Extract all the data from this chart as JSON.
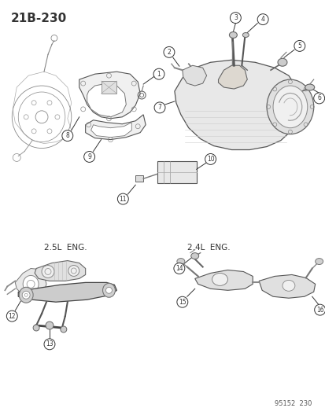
{
  "title": "21B-230",
  "footer": "95152  230",
  "bg": "#ffffff",
  "lc": "#333333",
  "gc": "#666666",
  "label_2_5L": "2.5L  ENG.",
  "label_2_4L": "2.4L  ENG.",
  "fig_w": 4.14,
  "fig_h": 5.33,
  "dpi": 100
}
